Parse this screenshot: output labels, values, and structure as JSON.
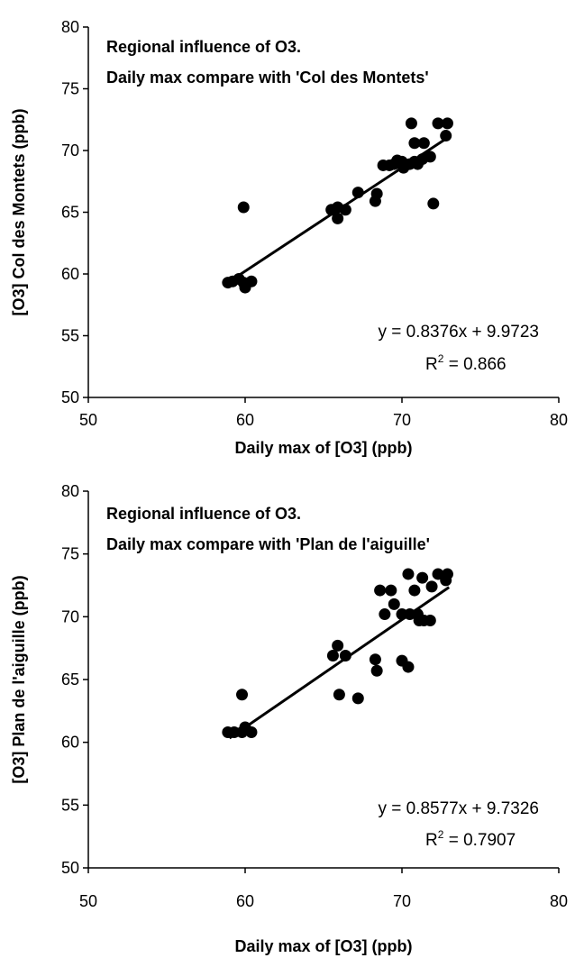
{
  "chart_data": [
    {
      "type": "scatter",
      "xlabel": "Daily max of [O3]  (ppb)",
      "ylabel": "[O3] Col des Montets  (ppb)",
      "xlim": [
        50,
        80
      ],
      "ylim": [
        50,
        80
      ],
      "x_ticks": [
        "50",
        "60",
        "70",
        "80"
      ],
      "y_ticks": [
        "50",
        "55",
        "60",
        "65",
        "70",
        "75",
        "80"
      ],
      "annotation_lines": [
        "Regional influence of O3.",
        "Daily max compare with 'Col des Montets'"
      ],
      "equation": "y = 0.8376x + 9.9723",
      "r2_prefix": "R",
      "r2_sup": "2",
      "r2_value": " = 0.866",
      "trendline": {
        "slope": 0.8376,
        "intercept": 9.9723,
        "x_range": [
          59.0,
          73.0
        ]
      },
      "grid": false,
      "points": [
        [
          58.9,
          59.3
        ],
        [
          59.2,
          59.4
        ],
        [
          59.6,
          59.6
        ],
        [
          59.9,
          59.3
        ],
        [
          60.0,
          58.9
        ],
        [
          60.4,
          59.4
        ],
        [
          59.9,
          65.4
        ],
        [
          65.5,
          65.2
        ],
        [
          65.9,
          65.4
        ],
        [
          65.9,
          64.5
        ],
        [
          66.4,
          65.2
        ],
        [
          67.2,
          66.6
        ],
        [
          68.3,
          65.9
        ],
        [
          68.4,
          66.5
        ],
        [
          68.8,
          68.8
        ],
        [
          69.2,
          68.8
        ],
        [
          69.5,
          68.9
        ],
        [
          69.7,
          69.2
        ],
        [
          70.0,
          69.1
        ],
        [
          70.1,
          68.6
        ],
        [
          70.5,
          68.9
        ],
        [
          70.8,
          69.1
        ],
        [
          71.0,
          68.9
        ],
        [
          71.3,
          69.3
        ],
        [
          71.8,
          69.5
        ],
        [
          70.8,
          70.6
        ],
        [
          71.4,
          70.6
        ],
        [
          70.6,
          72.2
        ],
        [
          72.0,
          65.7
        ],
        [
          72.3,
          72.2
        ],
        [
          72.9,
          72.2
        ],
        [
          72.8,
          71.2
        ]
      ]
    },
    {
      "type": "scatter",
      "xlabel": "Daily max of [O3]  (ppb)",
      "ylabel": "[O3] Plan de l'aiguille  (ppb)",
      "xlim": [
        50,
        80
      ],
      "ylim": [
        50,
        80
      ],
      "x_ticks": [
        "50",
        "60",
        "70",
        "80"
      ],
      "y_ticks": [
        "50",
        "55",
        "60",
        "65",
        "70",
        "75",
        "80"
      ],
      "annotation_lines": [
        "Regional influence of O3.",
        "Daily max compare with 'Plan de l'aiguille'"
      ],
      "equation": "y = 0.8577x + 9.7326",
      "r2_prefix": "R",
      "r2_sup": "2",
      "r2_value": " = 0.7907",
      "trendline": {
        "slope": 0.8577,
        "intercept": 9.7326,
        "x_range": [
          59.0,
          73.0
        ]
      },
      "grid": false,
      "points": [
        [
          58.9,
          60.8
        ],
        [
          59.3,
          60.8
        ],
        [
          59.8,
          60.8
        ],
        [
          60.0,
          61.2
        ],
        [
          60.4,
          60.8
        ],
        [
          59.8,
          63.8
        ],
        [
          65.6,
          66.9
        ],
        [
          65.9,
          67.7
        ],
        [
          66.4,
          66.9
        ],
        [
          66.0,
          63.8
        ],
        [
          67.2,
          63.5
        ],
        [
          68.3,
          66.6
        ],
        [
          68.4,
          65.7
        ],
        [
          68.6,
          72.1
        ],
        [
          69.3,
          72.1
        ],
        [
          68.9,
          70.2
        ],
        [
          69.5,
          71.0
        ],
        [
          70.0,
          70.2
        ],
        [
          70.5,
          70.2
        ],
        [
          71.0,
          70.2
        ],
        [
          71.1,
          69.7
        ],
        [
          71.4,
          69.7
        ],
        [
          71.8,
          69.7
        ],
        [
          70.4,
          73.4
        ],
        [
          71.3,
          73.1
        ],
        [
          70.8,
          72.1
        ],
        [
          70.0,
          66.5
        ],
        [
          70.4,
          66.0
        ],
        [
          71.9,
          72.4
        ],
        [
          72.3,
          73.4
        ],
        [
          72.9,
          73.4
        ],
        [
          72.8,
          72.9
        ]
      ]
    }
  ]
}
